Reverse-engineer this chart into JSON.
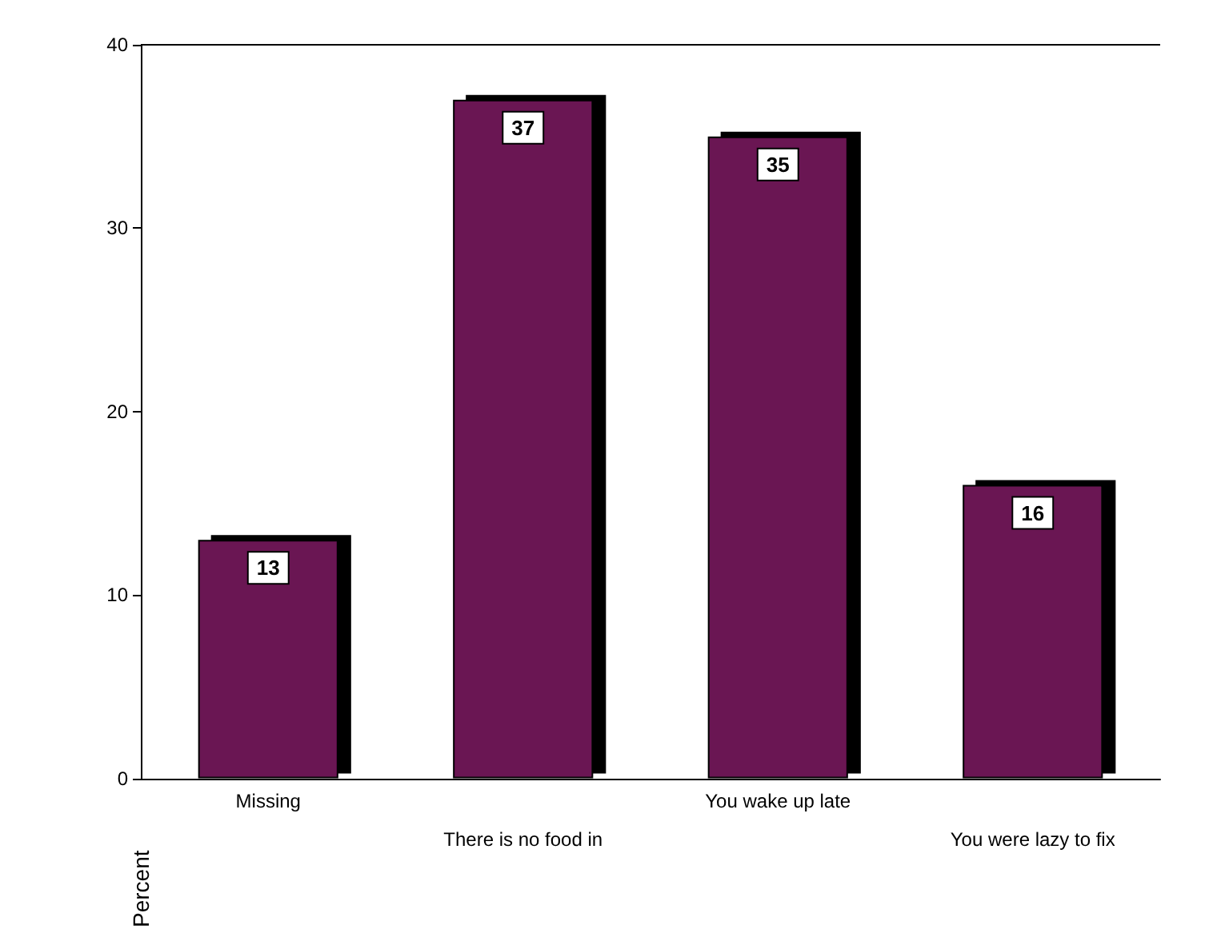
{
  "chart_data": {
    "type": "bar",
    "ylabel": "Percent",
    "categories": [
      "Missing",
      "There is no food in",
      "You wake up late",
      "You were lazy to fix"
    ],
    "values": [
      13,
      37,
      35,
      16
    ],
    "color": "#6a1552",
    "data_labels": true,
    "ylim": [
      0,
      40
    ],
    "yticks": [
      0,
      10,
      20,
      30,
      40
    ],
    "grid": false
  }
}
